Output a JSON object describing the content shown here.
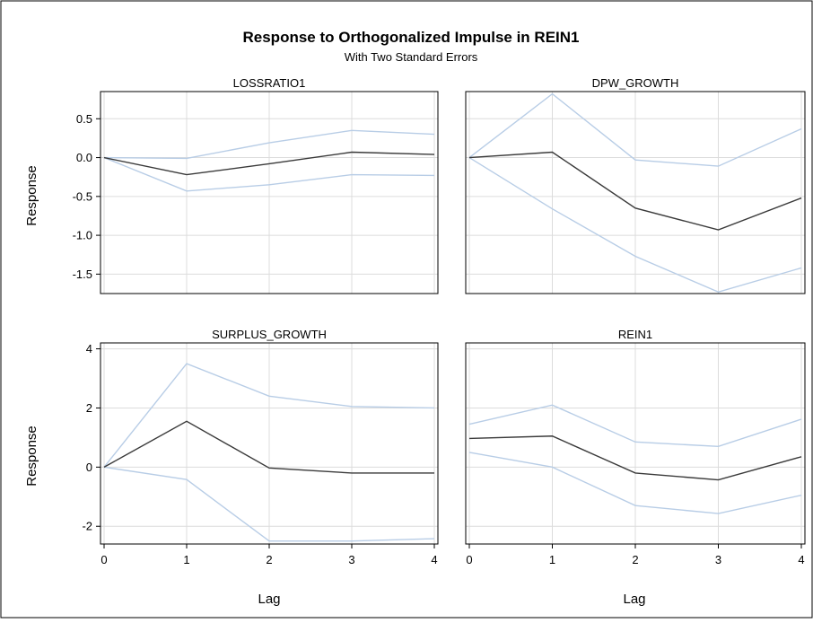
{
  "title": "Response to Orthogonalized Impulse in REIN1",
  "subtitle": "With Two Standard Errors",
  "ylabel": "Response",
  "xlabel": "Lag",
  "colors": {
    "response": "#3a3a3a",
    "bounds": "#b8cde6",
    "grid": "#dcdcdc",
    "frame": "#000000"
  },
  "chart_data": [
    {
      "type": "line",
      "title": "LOSSRATIO1",
      "x": [
        0,
        1,
        2,
        3,
        4
      ],
      "ylim": [
        -1.75,
        0.85
      ],
      "yticks": [
        0.5,
        0.0,
        -0.5,
        -1.0,
        -1.5
      ],
      "ytick_labels": [
        "0.5",
        "0.0",
        "-0.5",
        "-1.0",
        "-1.5"
      ],
      "grid": true,
      "series": [
        {
          "role": "response",
          "values": [
            0.0,
            -0.22,
            -0.08,
            0.07,
            0.04
          ]
        },
        {
          "role": "bound",
          "values": [
            0.0,
            -0.01,
            0.19,
            0.35,
            0.3
          ]
        },
        {
          "role": "bound",
          "values": [
            0.0,
            -0.43,
            -0.35,
            -0.22,
            -0.23
          ]
        }
      ]
    },
    {
      "type": "line",
      "title": "DPW_GROWTH",
      "x": [
        0,
        1,
        2,
        3,
        4
      ],
      "ylim": [
        -1.75,
        0.85
      ],
      "grid": true,
      "series": [
        {
          "role": "response",
          "values": [
            0.0,
            0.07,
            -0.65,
            -0.93,
            -0.52
          ]
        },
        {
          "role": "bound",
          "values": [
            0.0,
            0.82,
            -0.03,
            -0.11,
            0.37
          ]
        },
        {
          "role": "bound",
          "values": [
            0.0,
            -0.66,
            -1.27,
            -1.73,
            -1.42
          ]
        }
      ]
    },
    {
      "type": "line",
      "title": "SURPLUS_GROWTH",
      "x": [
        0,
        1,
        2,
        3,
        4
      ],
      "ylim": [
        -2.6,
        4.2
      ],
      "yticks": [
        4,
        2,
        0,
        -2
      ],
      "ytick_labels": [
        "4",
        "2",
        "0",
        "-2"
      ],
      "xticks": [
        0,
        1,
        2,
        3,
        4
      ],
      "xtick_labels": [
        "0",
        "1",
        "2",
        "3",
        "4"
      ],
      "grid": true,
      "series": [
        {
          "role": "response",
          "values": [
            0.0,
            1.55,
            -0.03,
            -0.2,
            -0.2
          ]
        },
        {
          "role": "bound",
          "values": [
            0.0,
            3.5,
            2.4,
            2.05,
            2.0
          ]
        },
        {
          "role": "bound",
          "values": [
            0.0,
            -0.42,
            -2.5,
            -2.5,
            -2.42
          ]
        }
      ]
    },
    {
      "type": "line",
      "title": "REIN1",
      "x": [
        0,
        1,
        2,
        3,
        4
      ],
      "ylim": [
        -2.6,
        4.2
      ],
      "xticks": [
        0,
        1,
        2,
        3,
        4
      ],
      "xtick_labels": [
        "0",
        "1",
        "2",
        "3",
        "4"
      ],
      "grid": true,
      "series": [
        {
          "role": "response",
          "values": [
            0.97,
            1.05,
            -0.2,
            -0.43,
            0.35
          ]
        },
        {
          "role": "bound",
          "values": [
            1.45,
            2.1,
            0.85,
            0.7,
            1.62
          ]
        },
        {
          "role": "bound",
          "values": [
            0.5,
            0.0,
            -1.3,
            -1.57,
            -0.95
          ]
        }
      ]
    }
  ]
}
